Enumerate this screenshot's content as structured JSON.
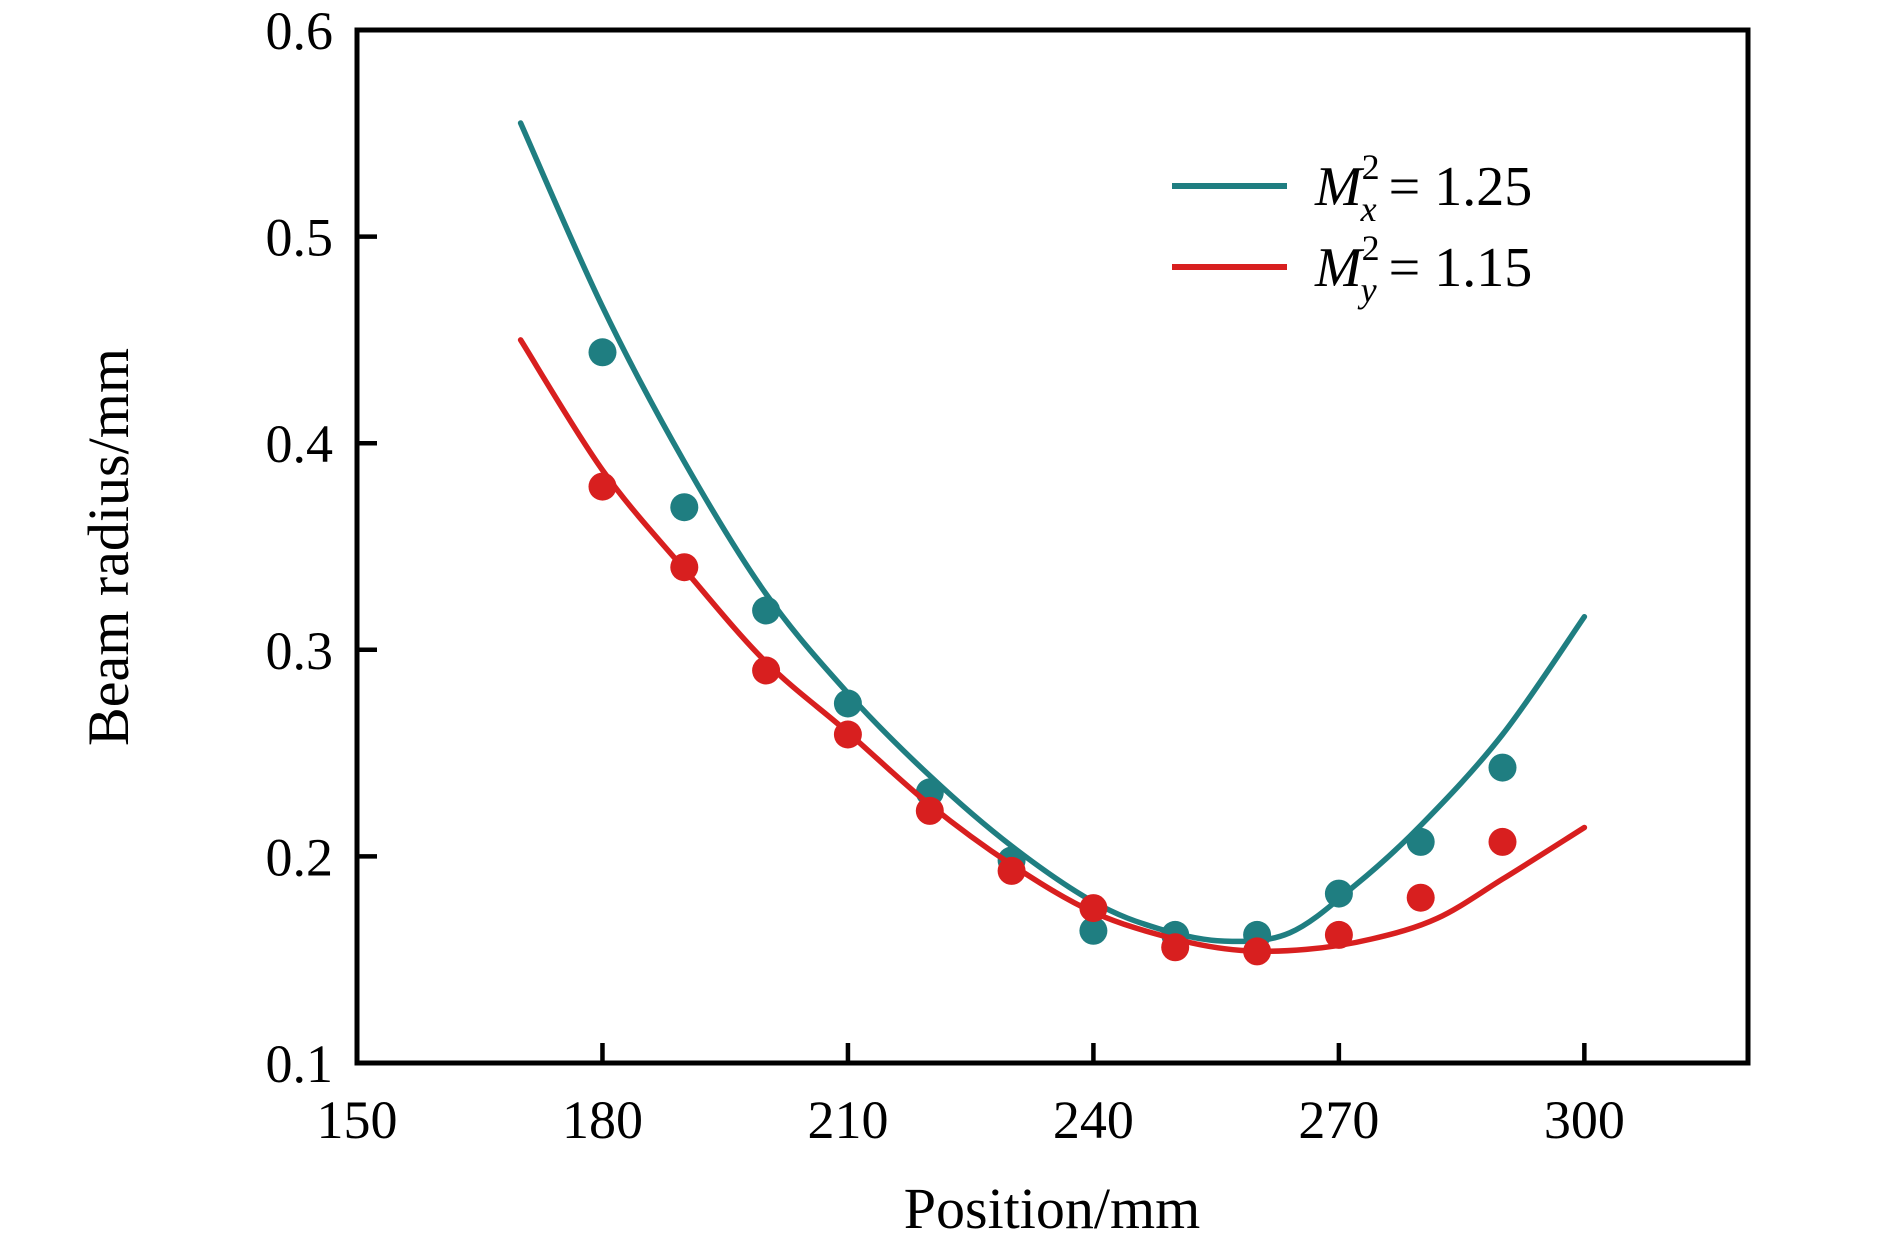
{
  "page": {
    "background": "#ffffff"
  },
  "chart_data": {
    "type": "scatter",
    "title": "",
    "xlabel": "Position/mm",
    "ylabel": "Beam radius/mm",
    "xlim": [
      150,
      320
    ],
    "ylim": [
      0.1,
      0.6
    ],
    "x_ticks": [
      150,
      180,
      210,
      240,
      270,
      300
    ],
    "y_ticks": [
      0.1,
      0.2,
      0.3,
      0.4,
      0.5,
      0.6
    ],
    "grid": false,
    "legend_position": "upper-right",
    "axis_color": "#000000",
    "series": [
      {
        "id": "mx",
        "label_text": "Mx² = 1.25",
        "symbol_base": "M",
        "symbol_sup": "2",
        "symbol_sub": "x",
        "value_text": "= 1.25",
        "color": "#1f7e81",
        "marker": "circle",
        "points_x": [
          180,
          190,
          200,
          210,
          220,
          230,
          240,
          250,
          260,
          270,
          280,
          290
        ],
        "points_y": [
          0.444,
          0.369,
          0.319,
          0.274,
          0.231,
          0.198,
          0.164,
          0.162,
          0.162,
          0.182,
          0.207,
          0.243
        ],
        "fit_x": [
          170,
          180,
          190,
          200,
          210,
          220,
          230,
          240,
          248,
          256,
          264,
          272,
          280,
          290,
          300
        ],
        "fit_y": [
          0.555,
          0.466,
          0.391,
          0.327,
          0.279,
          0.239,
          0.205,
          0.178,
          0.165,
          0.159,
          0.163,
          0.186,
          0.215,
          0.259,
          0.316
        ]
      },
      {
        "id": "my",
        "label_text": "My² = 1.15",
        "symbol_base": "M",
        "symbol_sup": "2",
        "symbol_sub": "y",
        "value_text": "= 1.15",
        "color": "#d81f1f",
        "marker": "circle",
        "points_x": [
          180,
          190,
          200,
          210,
          220,
          230,
          240,
          250,
          260,
          270,
          280,
          290
        ],
        "points_y": [
          0.379,
          0.34,
          0.29,
          0.259,
          0.222,
          0.193,
          0.175,
          0.156,
          0.154,
          0.162,
          0.18,
          0.207
        ],
        "fit_x": [
          170,
          180,
          190,
          200,
          210,
          220,
          230,
          240,
          250,
          258,
          266,
          274,
          282,
          290,
          300
        ],
        "fit_y": [
          0.45,
          0.387,
          0.339,
          0.294,
          0.26,
          0.225,
          0.196,
          0.173,
          0.16,
          0.1545,
          0.155,
          0.16,
          0.17,
          0.189,
          0.214
        ]
      }
    ]
  }
}
